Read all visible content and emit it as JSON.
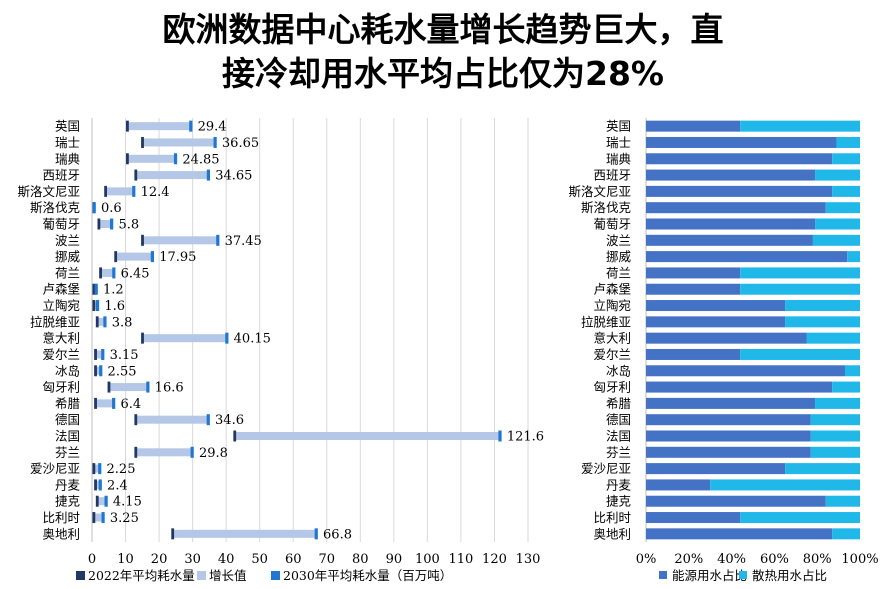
{
  "title": {
    "line1": "欧洲数据中心耗水量增长趋势巨大，直",
    "line2": "接冷却用水平均占比仅为28%"
  },
  "colors": {
    "val2022": "#203864",
    "growth": "#B4C7E7",
    "val2030": "#1F77D0",
    "energy": "#4472C4",
    "cooling": "#1FB8E8",
    "grid": "#D9D9D9",
    "text": "#000000"
  },
  "chart_data": [
    {
      "type": "bar",
      "orientation": "horizontal",
      "title": "",
      "categories": [
        "英国",
        "瑞士",
        "瑞典",
        "西班牙",
        "斯洛文尼亚",
        "斯洛伐克",
        "葡萄牙",
        "波兰",
        "挪威",
        "荷兰",
        "卢森堡",
        "立陶宛",
        "拉脱维亚",
        "意大利",
        "爱尔兰",
        "冰岛",
        "匈牙利",
        "希腊",
        "德国",
        "法国",
        "芬兰",
        "爱沙尼亚",
        "丹麦",
        "捷克",
        "比利时",
        "奥地利"
      ],
      "series": [
        {
          "name": "2022年平均耗水量",
          "values": [
            10.5,
            15.0,
            10.5,
            13.0,
            4.0,
            0.5,
            2.0,
            15.0,
            7.0,
            2.5,
            0.5,
            0.5,
            1.5,
            15.0,
            1.0,
            1.0,
            5.0,
            1.0,
            13.0,
            42.5,
            13.0,
            0.5,
            1.0,
            1.5,
            0.5,
            24.0
          ]
        },
        {
          "name": "增长值",
          "values": [
            null,
            null,
            null,
            null,
            null,
            null,
            null,
            null,
            null,
            null,
            null,
            null,
            null,
            null,
            null,
            null,
            null,
            null,
            null,
            null,
            null,
            null,
            null,
            null,
            null,
            null
          ]
        },
        {
          "name": "2030年平均耗水量（百万吨）",
          "values": [
            29.4,
            36.65,
            24.85,
            34.65,
            12.4,
            0.6,
            5.8,
            37.45,
            17.95,
            6.45,
            1.2,
            1.6,
            3.8,
            40.15,
            3.15,
            2.55,
            16.6,
            6.4,
            34.6,
            121.6,
            29.8,
            2.25,
            2.4,
            4.15,
            3.25,
            66.8
          ]
        }
      ],
      "data_labels": [
        "29.4",
        "36.65",
        "24.85",
        "34.65",
        "12.4",
        "0.6",
        "5.8",
        "37.45",
        "17.95",
        "6.45",
        "1.2",
        "1.6",
        "3.8",
        "40.15",
        "3.15",
        "2.55",
        "16.6",
        "6.4",
        "34.6",
        "121.6",
        "29.8",
        "2.25",
        "2.4",
        "4.15",
        "3.25",
        "66.8"
      ],
      "xlim": [
        0,
        130
      ],
      "xticks": [
        "0",
        "10",
        "20",
        "30",
        "40",
        "50",
        "60",
        "70",
        "80",
        "90",
        "100",
        "110",
        "120",
        "130"
      ],
      "legend": [
        "2022年平均耗水量",
        "增长值",
        "2030年平均耗水量（百万吨）"
      ],
      "grid": true
    },
    {
      "type": "bar",
      "orientation": "horizontal",
      "stacked": true,
      "categories": [
        "英国",
        "瑞士",
        "瑞典",
        "西班牙",
        "斯洛文尼亚",
        "斯洛伐克",
        "葡萄牙",
        "波兰",
        "挪威",
        "荷兰",
        "卢森堡",
        "立陶宛",
        "拉脱维亚",
        "意大利",
        "爱尔兰",
        "冰岛",
        "匈牙利",
        "希腊",
        "德国",
        "法国",
        "芬兰",
        "爱沙尼亚",
        "丹麦",
        "捷克",
        "比利时",
        "奥地利"
      ],
      "series": [
        {
          "name": "能源用水占比",
          "values": [
            44,
            89,
            87,
            79,
            87,
            84,
            79,
            78,
            94,
            44,
            44,
            65,
            65,
            75,
            44,
            93,
            87,
            79,
            77,
            77,
            77,
            65,
            30,
            84,
            44,
            87
          ]
        },
        {
          "name": "散热用水占比",
          "values": [
            56,
            11,
            13,
            21,
            13,
            16,
            21,
            22,
            6,
            56,
            56,
            35,
            35,
            25,
            56,
            7,
            13,
            21,
            23,
            23,
            23,
            35,
            70,
            16,
            56,
            13
          ]
        }
      ],
      "xlim": [
        0,
        100
      ],
      "xticks": [
        "0%",
        "20%",
        "40%",
        "60%",
        "80%",
        "100%"
      ],
      "legend": [
        "能源用水占比",
        "散热用水占比"
      ],
      "grid": false
    }
  ]
}
